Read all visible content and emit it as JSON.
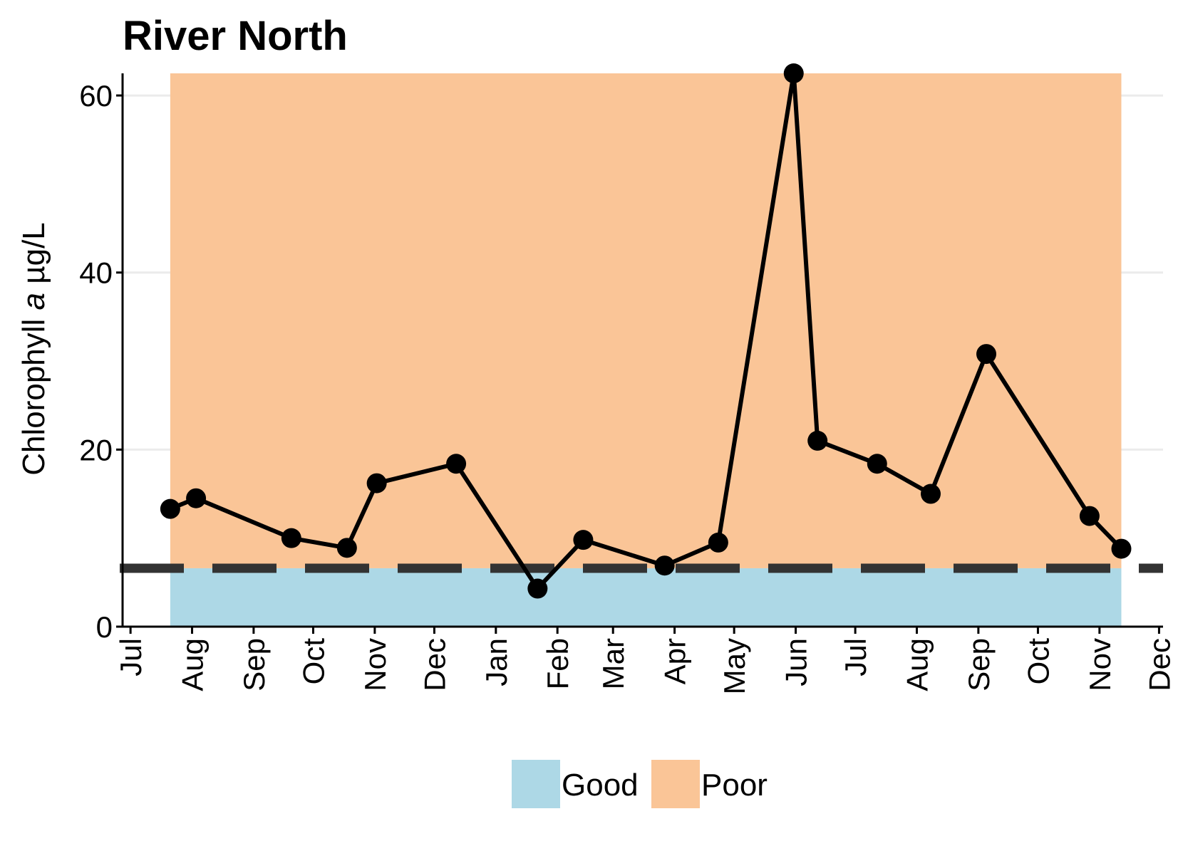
{
  "chart_data": {
    "type": "line",
    "title": "River North",
    "ylabel": "Chlorophyll a µg/L",
    "ylabel_parts": [
      "Chlorophyll ",
      "a",
      " µg/L"
    ],
    "xlabel": "",
    "ylim": [
      0,
      62.5
    ],
    "yticks": [
      0,
      20,
      40,
      60
    ],
    "xlim": [
      "2021-06-27",
      "2022-12-03"
    ],
    "xticks": [
      {
        "date": "2021-07-01",
        "label": "Jul"
      },
      {
        "date": "2021-08-01",
        "label": "Aug"
      },
      {
        "date": "2021-09-01",
        "label": "Sep"
      },
      {
        "date": "2021-10-01",
        "label": "Oct"
      },
      {
        "date": "2021-11-01",
        "label": "Nov"
      },
      {
        "date": "2021-12-01",
        "label": "Dec"
      },
      {
        "date": "2022-01-01",
        "label": "Jan"
      },
      {
        "date": "2022-02-01",
        "label": "Feb"
      },
      {
        "date": "2022-03-01",
        "label": "Mar"
      },
      {
        "date": "2022-04-01",
        "label": "Apr"
      },
      {
        "date": "2022-05-01",
        "label": "May"
      },
      {
        "date": "2022-06-01",
        "label": "Jun"
      },
      {
        "date": "2022-07-01",
        "label": "Jul"
      },
      {
        "date": "2022-08-01",
        "label": "Aug"
      },
      {
        "date": "2022-09-01",
        "label": "Sep"
      },
      {
        "date": "2022-10-01",
        "label": "Oct"
      },
      {
        "date": "2022-11-01",
        "label": "Nov"
      },
      {
        "date": "2022-12-01",
        "label": "Dec"
      }
    ],
    "series": [
      {
        "color": "#000000",
        "points": [
          {
            "x": "2021-07-21",
            "y": 13.3
          },
          {
            "x": "2021-08-03",
            "y": 14.5
          },
          {
            "x": "2021-09-20",
            "y": 10.0
          },
          {
            "x": "2021-10-18",
            "y": 8.9
          },
          {
            "x": "2021-11-02",
            "y": 16.2
          },
          {
            "x": "2021-12-12",
            "y": 18.4
          },
          {
            "x": "2022-01-22",
            "y": 4.3
          },
          {
            "x": "2022-02-14",
            "y": 9.8
          },
          {
            "x": "2022-03-27",
            "y": 6.9
          },
          {
            "x": "2022-04-23",
            "y": 9.5
          },
          {
            "x": "2022-05-31",
            "y": 62.5
          },
          {
            "x": "2022-06-12",
            "y": 21.0
          },
          {
            "x": "2022-07-12",
            "y": 18.4
          },
          {
            "x": "2022-08-08",
            "y": 15.0
          },
          {
            "x": "2022-09-05",
            "y": 30.8
          },
          {
            "x": "2022-10-27",
            "y": 12.5
          },
          {
            "x": "2022-11-12",
            "y": 8.8
          }
        ]
      }
    ],
    "threshold": {
      "y": 6.6,
      "style": "dashed",
      "color": "#333333"
    },
    "bands": [
      {
        "name": "Good",
        "color": "#add8e6",
        "y_from": 0,
        "y_to": 6.6,
        "x_from": "2021-07-21",
        "x_to": "2022-11-12"
      },
      {
        "name": "Poor",
        "color": "#fac597",
        "y_from": 6.6,
        "y_to": 62.5,
        "x_from": "2021-07-21",
        "x_to": "2022-11-12"
      }
    ],
    "legend": {
      "position": "bottom",
      "entries": [
        {
          "label": "Good",
          "color": "#add8e6"
        },
        {
          "label": "Poor",
          "color": "#fac597"
        }
      ]
    },
    "grid": "horizontal-major"
  }
}
